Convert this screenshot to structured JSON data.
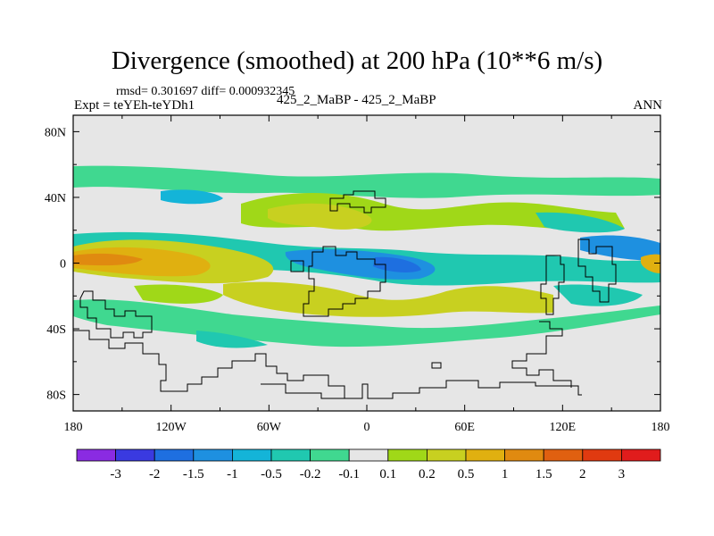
{
  "chart_data": {
    "type": "heatmap",
    "title": "Divergence (smoothed) at 200 hPa (10**6 m/s)",
    "stats_line": "rmsd= 0.301697 diff= 0.000932345",
    "experiment_label": "Expt = teYEh-teYDh1",
    "center_label": "425_2_MaBP - 425_2_MaBP",
    "season_label": "ANN",
    "x_axis": {
      "range": [
        -180,
        180
      ],
      "ticks": [
        {
          "value": -180,
          "label": "180"
        },
        {
          "value": -120,
          "label": "120W"
        },
        {
          "value": -60,
          "label": "60W"
        },
        {
          "value": 0,
          "label": "0"
        },
        {
          "value": 60,
          "label": "60E"
        },
        {
          "value": 120,
          "label": "120E"
        },
        {
          "value": 180,
          "label": "180"
        }
      ]
    },
    "y_axis": {
      "range": [
        -90,
        90
      ],
      "ticks": [
        {
          "value": 80,
          "label": "80N"
        },
        {
          "value": 40,
          "label": "40N"
        },
        {
          "value": 0,
          "label": "0"
        },
        {
          "value": -40,
          "label": "40S"
        },
        {
          "value": -80,
          "label": "80S"
        }
      ]
    },
    "colorbar": {
      "labels": [
        "-3",
        "-2",
        "-1.5",
        "-1",
        "-0.5",
        "-0.2",
        "-0.1",
        "0.1",
        "0.2",
        "0.5",
        "1",
        "1.5",
        "2",
        "3"
      ],
      "colors": [
        "#8a2be2",
        "#3a3ae0",
        "#1e6fe0",
        "#1e90e0",
        "#14b4d8",
        "#20c8b0",
        "#40d890",
        "#e6e6e6",
        "#a0d818",
        "#c8d020",
        "#e0b010",
        "#e08a10",
        "#e06010",
        "#e03a10",
        "#e01c1c"
      ]
    },
    "fields": [
      {
        "region": "northern subtropical band 20N-55N",
        "sign": "mixed",
        "values": "-0.5 to 0.5"
      },
      {
        "region": "equatorial Pacific 10S-10N, 180-100W",
        "sign": "positive",
        "values": "0.5 to 1.5"
      },
      {
        "region": "equatorial Atlantic/Africa 0-20S, 20W-60E",
        "sign": "negative",
        "values": "-1 to -0.2"
      },
      {
        "region": "southern subtropics 10S-35S",
        "sign": "positive",
        "values": "0.2 to 0.5"
      },
      {
        "region": "high latitudes poleward of 55",
        "sign": "neutral",
        "values": "-0.1 to 0.1"
      }
    ]
  }
}
